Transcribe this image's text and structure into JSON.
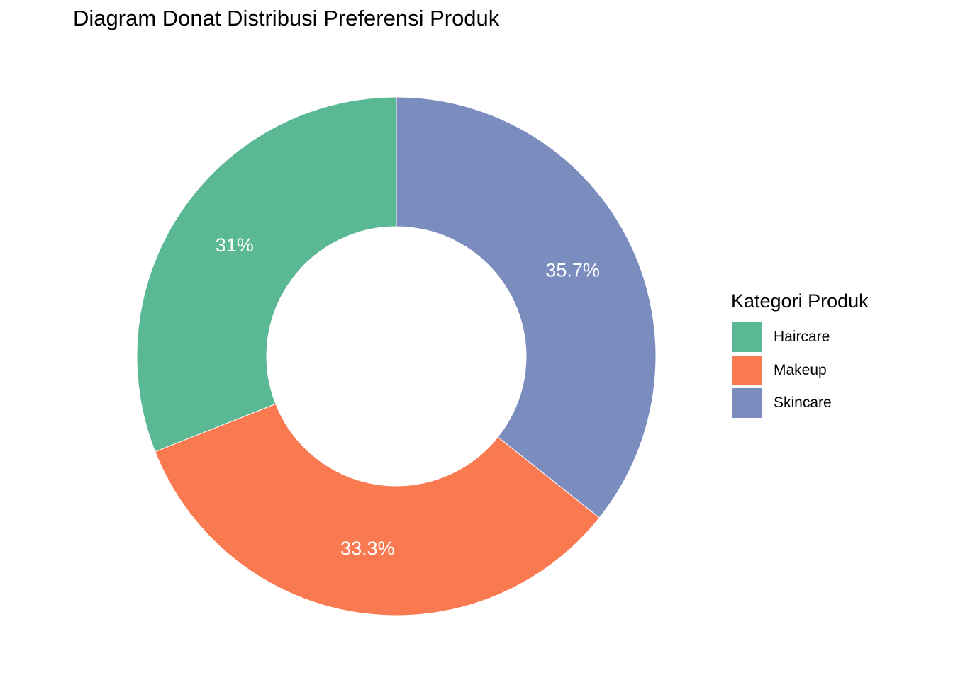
{
  "chart_data": {
    "type": "pie",
    "variant": "donut",
    "title": "Diagram Donat Distribusi Preferensi Produk",
    "categories": [
      "Haircare",
      "Makeup",
      "Skincare"
    ],
    "values": [
      31.0,
      33.3,
      35.7
    ],
    "labels": [
      "31%",
      "33.3%",
      "35.7%"
    ],
    "colors": [
      "#5ab994",
      "#f97950",
      "#7b8dbf"
    ],
    "legend": {
      "title": "Kategori Produk",
      "placement": "right"
    }
  }
}
